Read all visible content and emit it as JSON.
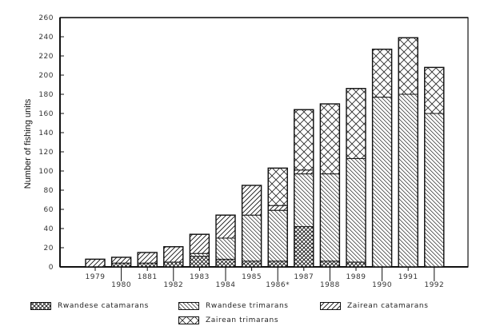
{
  "chart_data": {
    "type": "bar",
    "stacked": true,
    "title": "",
    "xlabel": "",
    "ylabel": "Number of fishing units",
    "ylim": [
      0,
      260
    ],
    "yticks": [
      0,
      20,
      40,
      60,
      80,
      100,
      120,
      140,
      160,
      180,
      200,
      220,
      240,
      260
    ],
    "grid": false,
    "legend_position": "bottom",
    "categories": [
      "1979",
      "1980",
      "1881",
      "1982",
      "1983",
      "1984",
      "1985",
      "1986*",
      "1987",
      "1988",
      "1989",
      "1990",
      "1991",
      "1992"
    ],
    "series": [
      {
        "name": "Rwandese catamarans",
        "pattern": "crosshatch-dense",
        "values": [
          0,
          4,
          4,
          5,
          11,
          8,
          6,
          6,
          42,
          6,
          5,
          0,
          0,
          0
        ]
      },
      {
        "name": "Rwandese trimarans",
        "pattern": "diagonal-back",
        "values": [
          0,
          0,
          0,
          0,
          3,
          22,
          48,
          53,
          55,
          91,
          108,
          177,
          180,
          160
        ]
      },
      {
        "name": "Zairean catamarans",
        "pattern": "diagonal-forward",
        "values": [
          8,
          6,
          11,
          16,
          20,
          24,
          31,
          5,
          4,
          0,
          0,
          0,
          0,
          0
        ]
      },
      {
        "name": "Zairean trimarans",
        "pattern": "crosshatch-open",
        "values": [
          0,
          0,
          0,
          0,
          0,
          0,
          0,
          39,
          63,
          73,
          73,
          50,
          59,
          48
        ]
      }
    ],
    "totals": [
      8,
      10,
      15,
      21,
      34,
      54,
      85,
      103,
      164,
      170,
      186,
      227,
      239,
      208
    ]
  },
  "legend": {
    "items": [
      {
        "label": "Rwandese catamarans"
      },
      {
        "label": "Rwandese trimarans"
      },
      {
        "label": "Zairean catamarans"
      },
      {
        "label": "Zairean trimarans"
      }
    ]
  },
  "axis": {
    "ylabel": "Number of fishing units"
  }
}
